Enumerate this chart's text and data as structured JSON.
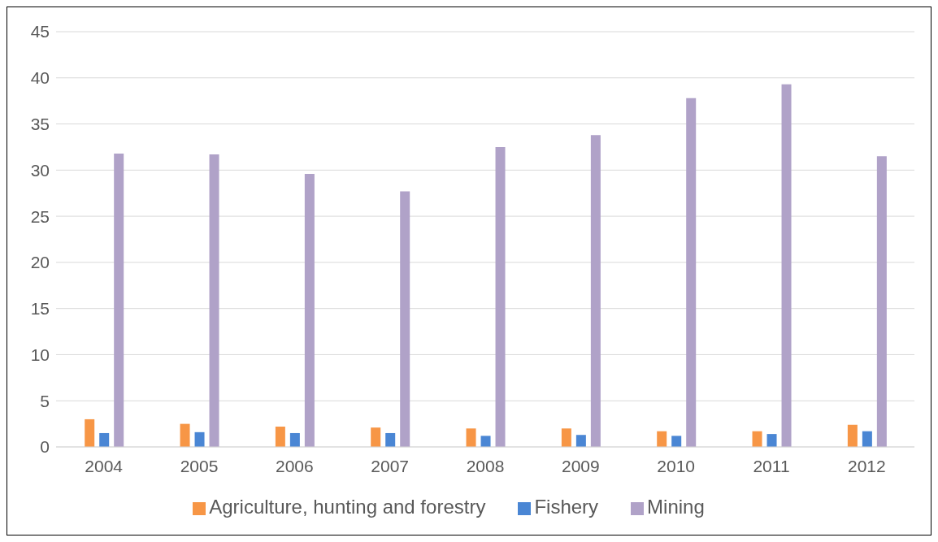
{
  "chart_data": {
    "type": "bar",
    "categories": [
      "2004",
      "2005",
      "2006",
      "2007",
      "2008",
      "2009",
      "2010",
      "2011",
      "2012"
    ],
    "series": [
      {
        "name": "Agriculture, hunting and forestry",
        "color": "#f79646",
        "values": [
          3.0,
          2.5,
          2.2,
          2.1,
          2.0,
          2.0,
          1.7,
          1.7,
          2.4
        ]
      },
      {
        "name": "Fishery",
        "color": "#4a86d4",
        "values": [
          1.5,
          1.6,
          1.5,
          1.5,
          1.2,
          1.3,
          1.2,
          1.4,
          1.7
        ]
      },
      {
        "name": "Mining",
        "color": "#b0a2c8",
        "values": [
          31.8,
          31.7,
          29.6,
          27.7,
          32.5,
          33.8,
          37.8,
          39.3,
          31.5
        ]
      }
    ],
    "ylim": [
      0,
      45
    ],
    "yticks": [
      0,
      5,
      10,
      15,
      20,
      25,
      30,
      35,
      40,
      45
    ],
    "grid": "y",
    "legend": "bottom"
  }
}
